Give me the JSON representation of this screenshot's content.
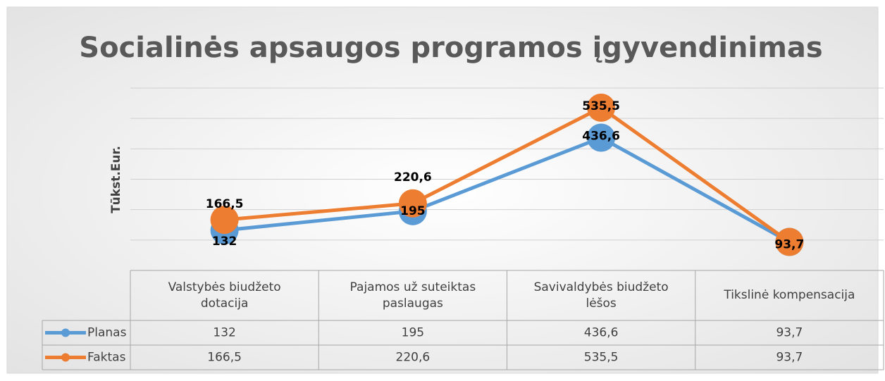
{
  "chart_data": {
    "type": "line",
    "title": "Socialinės apsaugos programos įgyvendinimas",
    "y_label": "Tūkst.Eur.",
    "categories": [
      "Valstybės biudžeto dotacija",
      "Pajamos už suteiktas paslaugas",
      "Savivaldybės biudžeto lėšos",
      "Tikslinė kompensacija"
    ],
    "series": [
      {
        "name": "Planas",
        "color": "#5b9bd5",
        "values": [
          132,
          195,
          436.6,
          93.7
        ],
        "value_labels": [
          "132",
          "195",
          "436,6",
          "93,7"
        ]
      },
      {
        "name": "Faktas",
        "color": "#ed7d31",
        "values": [
          166.5,
          220.6,
          535.5,
          93.7
        ],
        "value_labels": [
          "166,5",
          "220,6",
          "535,5",
          "93,7"
        ]
      }
    ],
    "ylim": [
      0,
      600
    ],
    "yticks": [
      0,
      100,
      200,
      300,
      400,
      500,
      600
    ],
    "grid": true,
    "data_table": true
  }
}
